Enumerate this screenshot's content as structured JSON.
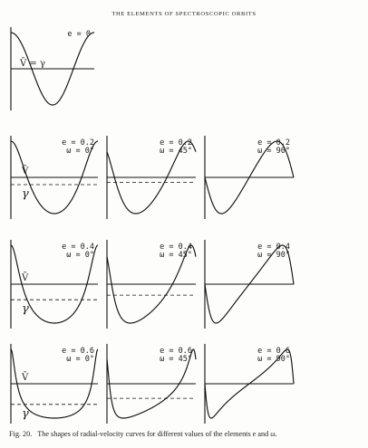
{
  "header": "THE ELEMENTS OF SPECTROSCOPIC ORBITS",
  "caption": {
    "label": "Fig. 20.",
    "text": "The shapes of radial-velocity curves for different values of the elements e and ω."
  },
  "symbols": {
    "vbar": "V̄",
    "gamma": "γ",
    "vbar_eq_gamma": "V̄ = γ"
  },
  "panels": [
    {
      "id": "e0",
      "e": 0,
      "omega": null,
      "e_label": "e = 0",
      "w_label": ""
    },
    {
      "id": "e02-w0",
      "e": 0.2,
      "omega": 0,
      "e_label": "e = 0.2",
      "w_label": "ω = 0°"
    },
    {
      "id": "e02-w45",
      "e": 0.2,
      "omega": 45,
      "e_label": "e = 0.2",
      "w_label": "ω = 45°"
    },
    {
      "id": "e02-w90",
      "e": 0.2,
      "omega": 90,
      "e_label": "e = 0.2",
      "w_label": "ω = 90°"
    },
    {
      "id": "e04-w0",
      "e": 0.4,
      "omega": 0,
      "e_label": "e = 0.4",
      "w_label": "ω = 0°"
    },
    {
      "id": "e04-w45",
      "e": 0.4,
      "omega": 45,
      "e_label": "e = 0.4",
      "w_label": "ω = 45°"
    },
    {
      "id": "e04-w90",
      "e": 0.4,
      "omega": 90,
      "e_label": "e = 0.4",
      "w_label": "ω = 90°"
    },
    {
      "id": "e06-w0",
      "e": 0.6,
      "omega": 0,
      "e_label": "e = 0.6",
      "w_label": "ω = 0°"
    },
    {
      "id": "e06-w45",
      "e": 0.6,
      "omega": 45,
      "e_label": "e = 0.6",
      "w_label": "ω = 45°"
    },
    {
      "id": "e06-w90",
      "e": 0.6,
      "omega": 90,
      "e_label": "e = 0.6",
      "w_label": "ω = 90°"
    }
  ]
}
